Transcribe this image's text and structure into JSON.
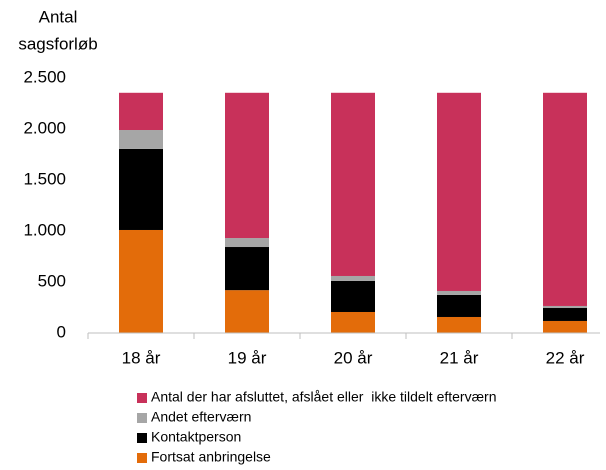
{
  "chart_data": {
    "type": "stacked_bar",
    "y_label": [
      "Antal",
      "sagsforløb"
    ],
    "categories": [
      "18 år",
      "19 år",
      "20 år",
      "21 år",
      "22 år"
    ],
    "series": [
      {
        "name": "Fortsat anbringelse",
        "color": "#e36c0a",
        "values": [
          1010,
          420,
          206,
          157,
          118
        ]
      },
      {
        "name": "Kontaktperson",
        "color": "#000000",
        "values": [
          795,
          423,
          304,
          216,
          127
        ]
      },
      {
        "name": "Andet efterværn",
        "color": "#a6a6a6",
        "values": [
          185,
          88,
          49,
          39,
          20
        ]
      },
      {
        "name": "Antal der har afsluttet, afslået eller  ikke tildelt efterværn",
        "color": "#c8315a",
        "values": [
          365,
          1424,
          1796,
          1943,
          2090
        ]
      }
    ],
    "ylim": [
      0,
      2500
    ],
    "yticks": [
      0,
      500,
      {
        "value": 1000,
        "label": "1.000"
      },
      {
        "value": 1500,
        "label": "1.500"
      },
      {
        "value": 2000,
        "label": "2.000"
      },
      {
        "value": 2500,
        "label": "2.500"
      }
    ],
    "grid": false
  }
}
